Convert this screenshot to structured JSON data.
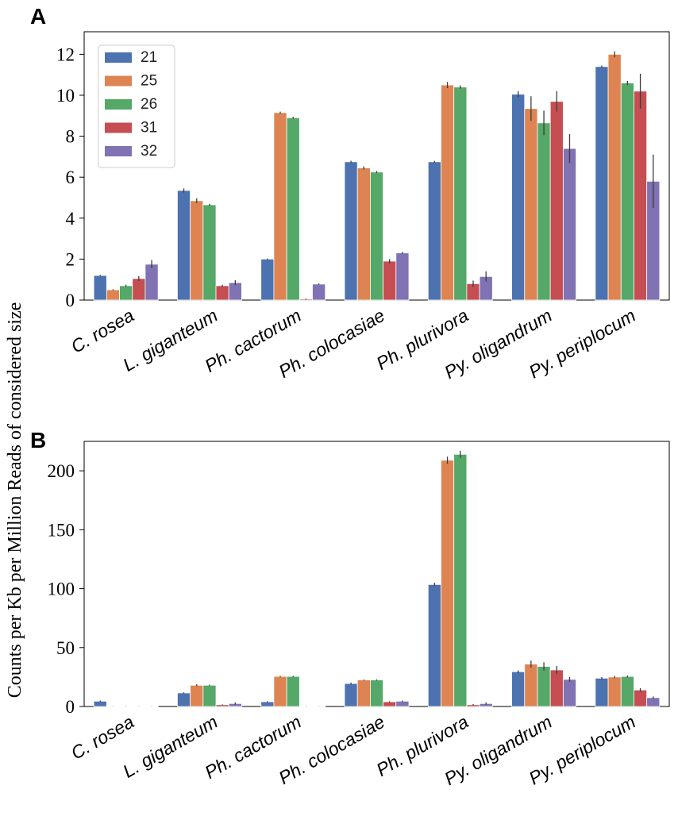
{
  "figure": {
    "ylabel": "Counts per Kb per Million Reads of considered size"
  },
  "legend": {
    "entries": [
      "21",
      "25",
      "26",
      "31",
      "32"
    ],
    "colors": [
      "#4c72b0",
      "#dd8452",
      "#55a868",
      "#c44e52",
      "#8172b3"
    ]
  },
  "chart_data": [
    {
      "panel": "A",
      "type": "bar",
      "categories": [
        "C. rosea",
        "L. giganteum",
        "Ph. cactorum",
        "Ph. colocasiae",
        "Ph. plurivora",
        "Py. oligandrum",
        "Py. periplocum"
      ],
      "ylim": [
        0,
        13.1
      ],
      "yticks": [
        0,
        2,
        4,
        6,
        8,
        10,
        12
      ],
      "yticklabels": [
        "0",
        "2",
        "4",
        "6",
        "8",
        "10",
        "12"
      ],
      "series": [
        {
          "name": "21",
          "values": [
            1.2,
            5.35,
            2.0,
            6.75,
            6.75,
            10.05,
            11.4
          ],
          "errors": [
            0.03,
            0.1,
            0.03,
            0.05,
            0.05,
            0.15,
            0.05
          ]
        },
        {
          "name": "25",
          "values": [
            0.5,
            4.85,
            9.15,
            6.45,
            10.5,
            9.35,
            12.0
          ],
          "errors": [
            0.03,
            0.12,
            0.05,
            0.08,
            0.15,
            0.6,
            0.15
          ]
        },
        {
          "name": "26",
          "values": [
            0.7,
            4.65,
            8.9,
            6.25,
            10.4,
            8.65,
            10.6
          ],
          "errors": [
            0.05,
            0.05,
            0.05,
            0.05,
            0.08,
            0.6,
            0.1
          ]
        },
        {
          "name": "31",
          "values": [
            1.05,
            0.7,
            0.05,
            1.9,
            0.8,
            9.7,
            10.2
          ],
          "errors": [
            0.12,
            0.05,
            0.03,
            0.1,
            0.15,
            0.5,
            0.85
          ]
        },
        {
          "name": "32",
          "values": [
            1.75,
            0.85,
            0.78,
            2.3,
            1.15,
            7.4,
            5.8
          ],
          "errors": [
            0.2,
            0.12,
            0.03,
            0.05,
            0.25,
            0.7,
            1.3
          ]
        }
      ],
      "legend_position": "top-left"
    },
    {
      "panel": "B",
      "type": "bar",
      "categories": [
        "C. rosea",
        "L. giganteum",
        "Ph. cactorum",
        "Ph. colocasiae",
        "Ph. plurivora",
        "Py. oligandrum",
        "Py. periplocum"
      ],
      "ylim": [
        0,
        225
      ],
      "yticks": [
        0,
        50,
        100,
        150,
        200
      ],
      "yticklabels": [
        "0",
        "50",
        "100",
        "150",
        "200"
      ],
      "series": [
        {
          "name": "21",
          "values": [
            4.5,
            11.5,
            4.0,
            19.5,
            103.5,
            29.5,
            24.0
          ],
          "errors": [
            0.5,
            0.5,
            0.5,
            0.8,
            1.5,
            1.2,
            1.0
          ]
        },
        {
          "name": "25",
          "values": [
            0.2,
            18.0,
            25.5,
            22.5,
            209.0,
            36.0,
            25.0
          ],
          "errors": [
            0.1,
            0.8,
            0.5,
            0.5,
            3.0,
            3.0,
            1.0
          ]
        },
        {
          "name": "26",
          "values": [
            0.2,
            18.0,
            25.5,
            22.5,
            214.0,
            34.0,
            25.5
          ],
          "errors": [
            0.1,
            0.5,
            0.5,
            0.5,
            3.0,
            3.5,
            0.8
          ]
        },
        {
          "name": "31",
          "values": [
            0.2,
            1.5,
            0.2,
            4.0,
            1.5,
            31.0,
            14.0
          ],
          "errors": [
            0.1,
            0.3,
            0.1,
            0.4,
            0.5,
            3.5,
            1.5
          ]
        },
        {
          "name": "32",
          "values": [
            0.2,
            2.5,
            0.2,
            4.5,
            2.5,
            23.0,
            7.5
          ],
          "errors": [
            0.1,
            1.0,
            0.1,
            0.5,
            1.0,
            2.0,
            1.0
          ]
        }
      ]
    }
  ]
}
